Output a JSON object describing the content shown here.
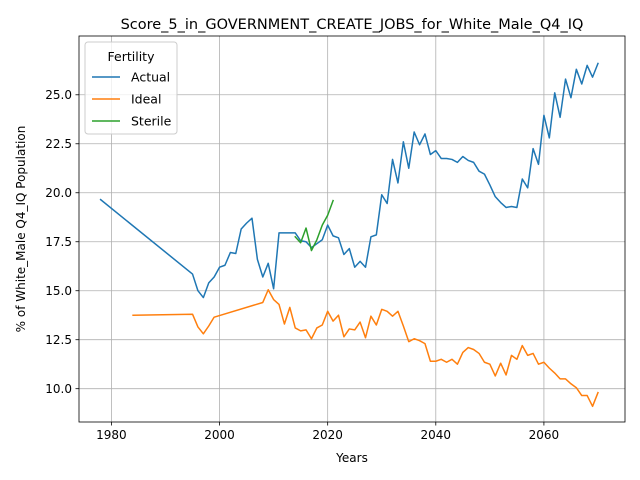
{
  "chart_data": {
    "type": "line",
    "title": "Score_5_in_GOVERNMENT_CREATE_JOBS_for_White_Male_Q4_IQ",
    "xlabel": "Years",
    "ylabel": "% of White_Male Q4_IQ Population",
    "xlim": [
      1974,
      2075
    ],
    "ylim": [
      8.3,
      28.0
    ],
    "x_ticks": [
      1980,
      2000,
      2020,
      2040,
      2060
    ],
    "y_ticks": [
      10.0,
      12.5,
      15.0,
      17.5,
      20.0,
      22.5,
      25.0
    ],
    "y_tick_labels": [
      "10.0",
      "12.5",
      "15.0",
      "17.5",
      "20.0",
      "22.5",
      "25.0"
    ],
    "grid": true,
    "legend": {
      "title": "Fertility",
      "placement": "upper left"
    },
    "series": [
      {
        "name": "Actual",
        "color": "#1f77b4",
        "x": [
          1978,
          1995,
          1996,
          1997,
          1998,
          1999,
          2000,
          2001,
          2002,
          2003,
          2004,
          2005,
          2006,
          2007,
          2008,
          2009,
          2010,
          2011,
          2012,
          2013,
          2014,
          2015,
          2016,
          2017,
          2018,
          2019,
          2020,
          2021,
          2022,
          2023,
          2024,
          2025,
          2026,
          2027,
          2028,
          2029,
          2030,
          2031,
          2032,
          2033,
          2034,
          2035,
          2036,
          2037,
          2038,
          2039,
          2040,
          2041,
          2042,
          2043,
          2044,
          2045,
          2046,
          2047,
          2048,
          2049,
          2050,
          2051,
          2052,
          2053,
          2054,
          2055,
          2056,
          2057,
          2058,
          2059,
          2060,
          2061,
          2062,
          2063,
          2064,
          2065,
          2066,
          2067,
          2068,
          2069,
          2070
        ],
        "y": [
          19.65,
          15.85,
          15.0,
          14.65,
          15.4,
          15.7,
          16.2,
          16.3,
          16.95,
          16.9,
          18.15,
          18.45,
          18.7,
          16.6,
          15.7,
          16.4,
          15.1,
          17.95,
          17.95,
          17.95,
          17.95,
          17.55,
          17.5,
          17.2,
          17.4,
          17.6,
          18.35,
          17.8,
          17.7,
          16.85,
          17.15,
          16.2,
          16.5,
          16.2,
          17.75,
          17.85,
          19.9,
          19.45,
          21.7,
          20.5,
          22.6,
          21.25,
          23.1,
          22.45,
          23.0,
          21.95,
          22.15,
          21.75,
          21.75,
          21.7,
          21.55,
          21.85,
          21.65,
          21.55,
          21.1,
          20.95,
          20.4,
          19.8,
          19.5,
          19.25,
          19.3,
          19.25,
          20.7,
          20.25,
          22.25,
          21.45,
          23.95,
          22.8,
          25.1,
          23.85,
          25.8,
          24.85,
          26.3,
          25.55,
          26.5,
          25.9,
          26.6
        ]
      },
      {
        "name": "Ideal",
        "color": "#ff7f0e",
        "x": [
          1984,
          1995,
          1996,
          1997,
          1998,
          1999,
          2008,
          2009,
          2010,
          2011,
          2012,
          2013,
          2014,
          2015,
          2016,
          2017,
          2018,
          2019,
          2020,
          2021,
          2022,
          2023,
          2024,
          2025,
          2026,
          2027,
          2028,
          2029,
          2030,
          2031,
          2032,
          2033,
          2034,
          2035,
          2036,
          2037,
          2038,
          2039,
          2040,
          2041,
          2042,
          2043,
          2044,
          2045,
          2046,
          2047,
          2048,
          2049,
          2050,
          2051,
          2052,
          2053,
          2054,
          2055,
          2056,
          2057,
          2058,
          2059,
          2060,
          2061,
          2062,
          2063,
          2064,
          2065,
          2066,
          2067,
          2068,
          2069,
          2070
        ],
        "y": [
          13.75,
          13.8,
          13.15,
          12.8,
          13.2,
          13.65,
          14.4,
          15.05,
          14.55,
          14.3,
          13.3,
          14.15,
          13.1,
          12.95,
          13.0,
          12.55,
          13.1,
          13.25,
          13.95,
          13.45,
          13.75,
          12.65,
          13.05,
          13.0,
          13.4,
          12.6,
          13.7,
          13.25,
          14.05,
          13.95,
          13.7,
          13.95,
          13.2,
          12.4,
          12.55,
          12.45,
          12.3,
          11.4,
          11.4,
          11.5,
          11.35,
          11.5,
          11.25,
          11.85,
          12.1,
          12.0,
          11.8,
          11.35,
          11.25,
          10.65,
          11.3,
          10.7,
          11.7,
          11.5,
          12.2,
          11.7,
          11.8,
          11.25,
          11.35,
          11.05,
          10.8,
          10.5,
          10.5,
          10.25,
          10.05,
          9.65,
          9.65,
          9.1,
          9.8
        ]
      },
      {
        "name": "Sterile",
        "color": "#2ca02c",
        "x": [
          2014,
          2015,
          2016,
          2017,
          2018,
          2019,
          2020,
          2021
        ],
        "y": [
          17.75,
          17.45,
          18.2,
          17.05,
          17.6,
          18.35,
          18.85,
          19.6
        ]
      }
    ]
  }
}
